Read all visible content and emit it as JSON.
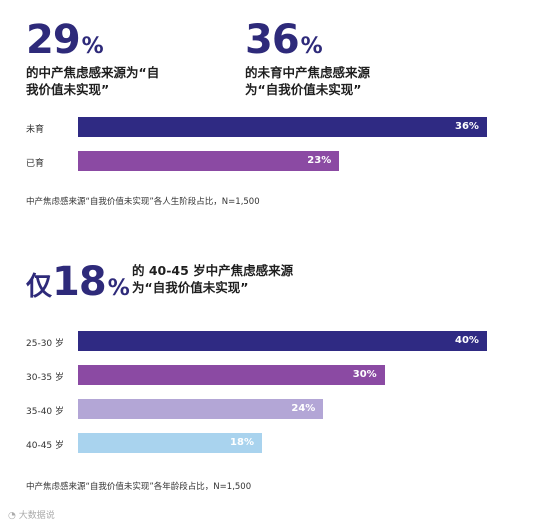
{
  "stat1": {
    "number": "29",
    "percent": "%",
    "text_line1": "的中产焦虑感来源为“自",
    "text_line2": "我价值未实现”"
  },
  "stat2": {
    "number": "36",
    "percent": "%",
    "text_line1": "的未育中产焦虑感来源",
    "text_line2": "为“自我价值未实现”"
  },
  "stat3": {
    "prefix": "仅",
    "number": "18",
    "percent": "%",
    "text_line1": "的 40-45 岁中产焦虑感来源",
    "text_line2": "为“自我价值未实现”"
  },
  "watermark": "大数据说",
  "chart_data": [
    {
      "type": "bar",
      "orientation": "horizontal",
      "categories": [
        "未育",
        "已育"
      ],
      "values": [
        36,
        23
      ],
      "value_labels": [
        "36%",
        "23%"
      ],
      "colors": [
        "#2f2a83",
        "#8b4aa3"
      ],
      "xlim": [
        0,
        36
      ],
      "caption": "中产焦虑感来源“自我价值未实现”各人生阶段占比，N=1,500"
    },
    {
      "type": "bar",
      "orientation": "horizontal",
      "categories": [
        "25-30 岁",
        "30-35 岁",
        "35-40 岁",
        "40-45 岁"
      ],
      "values": [
        40,
        30,
        24,
        18
      ],
      "value_labels": [
        "40%",
        "30%",
        "24%",
        "18%"
      ],
      "colors": [
        "#2f2a83",
        "#8b4aa3",
        "#b3a6d6",
        "#a9d3ee"
      ],
      "xlim": [
        0,
        40
      ],
      "caption": "中产焦虑感来源“自我价值未实现”各年龄段占比，N=1,500"
    }
  ]
}
